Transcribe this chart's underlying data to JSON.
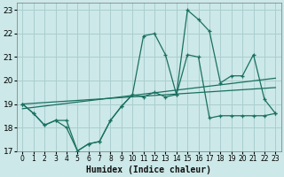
{
  "xlabel": "Humidex (Indice chaleur)",
  "bg_color": "#cce8e8",
  "grid_color": "#aacece",
  "line_color": "#1a7060",
  "xlim": [
    -0.5,
    23.5
  ],
  "ylim": [
    17,
    23.3
  ],
  "xticks": [
    0,
    1,
    2,
    3,
    4,
    5,
    6,
    7,
    8,
    9,
    10,
    11,
    12,
    13,
    14,
    15,
    16,
    17,
    18,
    19,
    20,
    21,
    22,
    23
  ],
  "yticks": [
    17,
    18,
    19,
    20,
    21,
    22,
    23
  ],
  "line1_x": [
    0,
    1,
    2,
    3,
    4,
    5,
    6,
    7,
    8,
    9,
    10,
    11,
    12,
    13,
    14,
    15,
    16,
    17,
    18,
    19,
    20,
    21,
    22,
    23
  ],
  "line1_y": [
    19.0,
    18.6,
    18.1,
    18.3,
    18.3,
    17.0,
    17.3,
    17.4,
    18.3,
    18.9,
    19.4,
    21.9,
    22.0,
    21.1,
    19.4,
    23.0,
    22.6,
    22.1,
    19.9,
    20.2,
    20.2,
    21.1,
    19.2,
    18.6
  ],
  "line2_x": [
    0,
    1,
    2,
    3,
    4,
    5,
    6,
    7,
    8,
    9,
    10,
    11,
    12,
    13,
    14,
    15,
    16,
    17,
    18,
    19,
    20,
    21,
    22,
    23
  ],
  "line2_y": [
    19.0,
    18.6,
    18.1,
    18.3,
    18.0,
    17.0,
    17.3,
    17.4,
    18.3,
    18.9,
    19.4,
    19.3,
    19.5,
    19.3,
    19.4,
    21.1,
    21.0,
    18.4,
    18.5,
    18.5,
    18.5,
    18.5,
    18.5,
    18.6
  ],
  "trend1_x": [
    0,
    23
  ],
  "trend1_y": [
    18.8,
    20.1
  ],
  "trend2_x": [
    0,
    23
  ],
  "trend2_y": [
    19.0,
    19.7
  ]
}
